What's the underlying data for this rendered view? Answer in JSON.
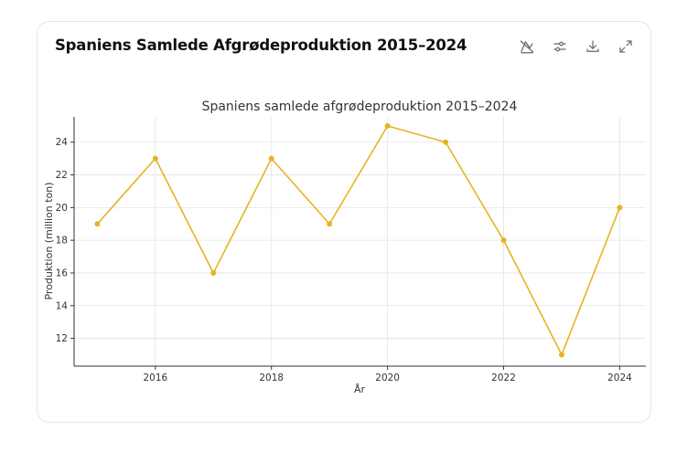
{
  "card": {
    "title": "Spaniens Samlede Afgrødeproduktion 2015–2024"
  },
  "toolbar": {
    "buttons": [
      {
        "name": "hide-values-button",
        "icon": "chart-off-icon"
      },
      {
        "name": "settings-button",
        "icon": "sliders-icon"
      },
      {
        "name": "download-button",
        "icon": "download-icon"
      },
      {
        "name": "expand-button",
        "icon": "expand-icon"
      }
    ]
  },
  "chart_data": {
    "type": "line",
    "title": "Spaniens samlede afgrødeproduktion 2015–2024",
    "xlabel": "År",
    "ylabel": "Produktion (million ton)",
    "x": [
      2015,
      2016,
      2017,
      2018,
      2019,
      2020,
      2021,
      2022,
      2023,
      2024
    ],
    "series": [
      {
        "values": [
          19,
          23,
          16,
          23,
          19,
          25,
          24,
          18,
          11,
          20
        ]
      }
    ],
    "xlim": [
      2014.6,
      2024.45
    ],
    "ylim": [
      10.3,
      25.55
    ],
    "xticks": [
      2016,
      2018,
      2020,
      2022,
      2024
    ],
    "yticks": [
      12,
      14,
      16,
      18,
      20,
      22,
      24
    ],
    "grid": true,
    "color": "#e6b422"
  }
}
